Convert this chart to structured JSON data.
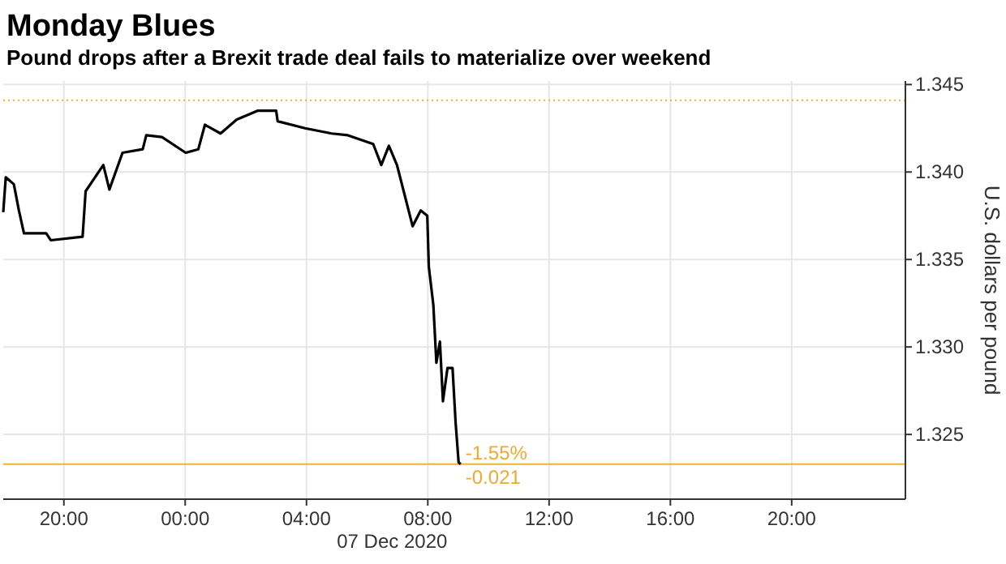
{
  "chart_data": {
    "type": "line",
    "title": "Monday Blues",
    "subtitle": "Pound drops after a Brexit trade deal fails to materialize over weekend",
    "xlabel": "07 Dec 2020",
    "ylabel": "U.S. dollars per pound",
    "x": [
      "2020-12-06T18:00",
      "2020-12-06T18:05",
      "2020-12-06T18:21",
      "2020-12-06T18:31",
      "2020-12-06T18:41",
      "2020-12-06T19:25",
      "2020-12-06T19:34",
      "2020-12-06T20:37",
      "2020-12-06T20:43",
      "2020-12-06T21:18",
      "2020-12-06T21:30",
      "2020-12-06T21:56",
      "2020-12-06T22:36",
      "2020-12-06T22:43",
      "2020-12-06T23:14",
      "2020-12-07T00:01",
      "2020-12-07T00:26",
      "2020-12-07T00:39",
      "2020-12-07T01:10",
      "2020-12-07T01:42",
      "2020-12-07T02:23",
      "2020-12-07T03:00",
      "2020-12-07T03:03",
      "2020-12-07T03:57",
      "2020-12-07T04:50",
      "2020-12-07T05:22",
      "2020-12-07T06:12",
      "2020-12-07T06:28",
      "2020-12-07T06:43",
      "2020-12-07T06:59",
      "2020-12-07T07:15",
      "2020-12-07T07:30",
      "2020-12-07T07:46",
      "2020-12-07T07:59",
      "2020-12-07T08:02",
      "2020-12-07T08:11",
      "2020-12-07T08:17",
      "2020-12-07T08:24",
      "2020-12-07T08:30",
      "2020-12-07T08:39",
      "2020-12-07T08:49",
      "2020-12-07T08:55",
      "2020-12-07T09:01",
      "2020-12-07T09:05"
    ],
    "series": [
      {
        "color": "#000000",
        "values": [
          1.3377,
          1.3397,
          1.3393,
          1.3378,
          1.3365,
          1.3365,
          1.3361,
          1.3363,
          1.3389,
          1.3404,
          1.339,
          1.3411,
          1.3413,
          1.3421,
          1.342,
          1.3411,
          1.3413,
          1.3427,
          1.3422,
          1.343,
          1.3435,
          1.3435,
          1.3429,
          1.3425,
          1.3422,
          1.3421,
          1.3416,
          1.3404,
          1.3415,
          1.3404,
          1.3386,
          1.3369,
          1.3378,
          1.3375,
          1.3346,
          1.3324,
          1.3291,
          1.3303,
          1.3269,
          1.3288,
          1.3288,
          1.3257,
          1.3234,
          1.3233
        ]
      }
    ],
    "xlim": [
      "2020-12-06T18:00",
      "2020-12-07T23:45"
    ],
    "xticks": [
      {
        "value": "2020-12-06T20:00",
        "label": "20:00"
      },
      {
        "value": "2020-12-07T00:00",
        "label": "00:00"
      },
      {
        "value": "2020-12-07T04:00",
        "label": "04:00"
      },
      {
        "value": "2020-12-07T08:00",
        "label": "08:00"
      },
      {
        "value": "2020-12-07T12:00",
        "label": "12:00"
      },
      {
        "value": "2020-12-07T16:00",
        "label": "16:00"
      },
      {
        "value": "2020-12-07T20:00",
        "label": "20:00"
      }
    ],
    "ylim": [
      1.3213,
      1.3452
    ],
    "yticks": [
      1.325,
      {
        "value": 1.33,
        "label": "1.330"
      },
      1.335,
      {
        "value": 1.34,
        "label": "1.340"
      },
      1.345
    ],
    "grid": true,
    "ref_lines": [
      {
        "axis": "y",
        "value": 1.3441,
        "color": "#f0b429",
        "line_style": "dotted"
      },
      {
        "axis": "y",
        "value": 1.3233,
        "color": "#f0b429",
        "line_style": "solid"
      }
    ],
    "annotations": [
      {
        "text": "-1.55%",
        "x": "2020-12-07T09:05",
        "y": 1.3233
      },
      {
        "text": "-0.021",
        "x": "2020-12-07T09:05",
        "y": 1.3233
      }
    ]
  }
}
